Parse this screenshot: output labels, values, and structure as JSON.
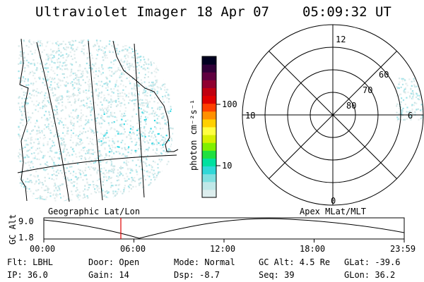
{
  "header": {
    "title": "Ultraviolet Imager",
    "date": "18 Apr 07",
    "time": "05:09:32 UT"
  },
  "colorbar": {
    "unit_label": "photon cm⁻²s⁻¹",
    "ticks": [
      "100",
      "10"
    ],
    "colors": [
      "#ddeeee",
      "#bfe8e8",
      "#80e0e0",
      "#30d8d8",
      "#00e0a0",
      "#20e040",
      "#80f000",
      "#d8f000",
      "#ffff40",
      "#ffd000",
      "#ff9000",
      "#ff4000",
      "#e00000",
      "#c00010",
      "#900030",
      "#600040",
      "#300038",
      "#000020"
    ]
  },
  "polar": {
    "mlt_labels": [
      "12",
      "18",
      "6",
      "0"
    ],
    "lat_labels": [
      "60",
      "70",
      "80"
    ]
  },
  "timeline": {
    "axis_label": "GC Alt",
    "ticks_y": [
      "9.0",
      "1.8"
    ],
    "left_title": "Geographic Lat/Lon",
    "right_title": "Apex MLat/MLT",
    "ticks_x": [
      "00:00",
      "06:00",
      "12:00",
      "18:00",
      "23:59"
    ]
  },
  "info": {
    "filter": "Flt: LBHL",
    "door": "Door: Open",
    "mode": "Mode: Normal",
    "gc_alt": "GC Alt: 4.5 Re",
    "glat": "GLat: -39.6",
    "ip": "IP: 36.0",
    "gain": "Gain: 14",
    "dsp": "Dsp:   -8.7",
    "seq": "Seq: 39",
    "glon": "GLon:  36.2"
  }
}
